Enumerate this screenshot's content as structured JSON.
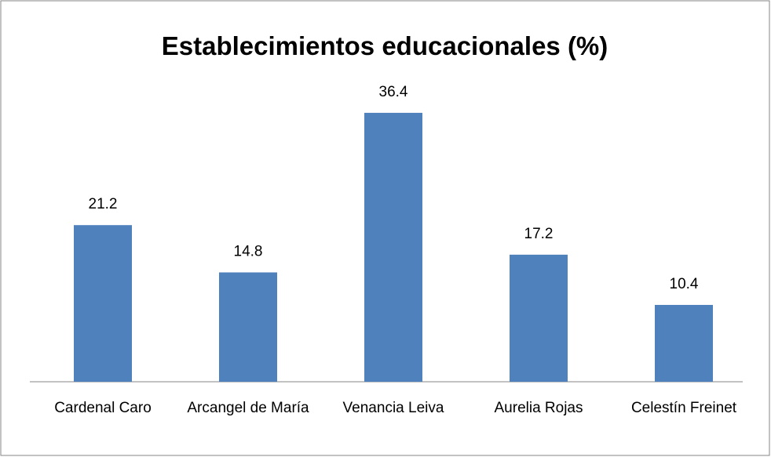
{
  "chart_data": {
    "type": "bar",
    "title": "Establecimientos educacionales (%)",
    "categories": [
      "Cardenal Caro",
      "Arcangel de María",
      "Venancia Leiva",
      "Aurelia Rojas",
      "Celestín Freinet"
    ],
    "values": [
      21.2,
      14.8,
      36.4,
      17.2,
      10.4
    ],
    "color": "#4f81bd",
    "ylim": [
      0,
      40
    ]
  }
}
